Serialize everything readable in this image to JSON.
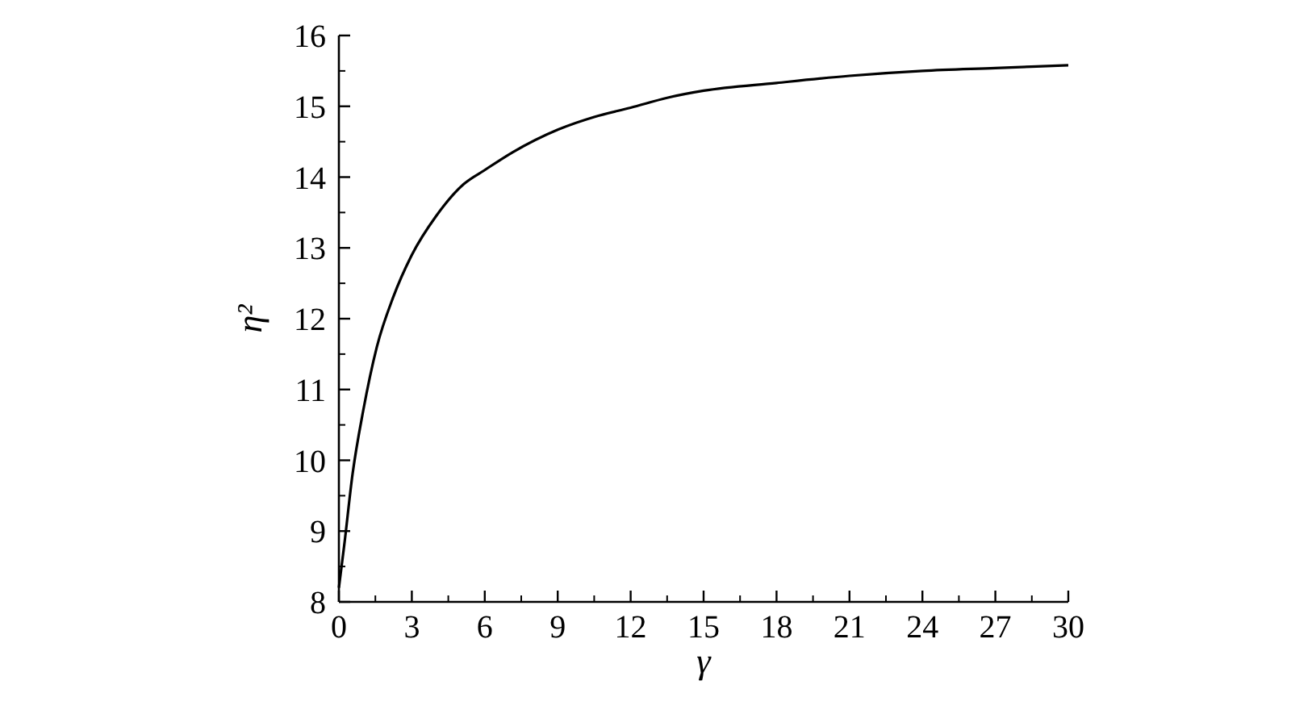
{
  "chart_data": {
    "type": "line",
    "xlabel": "γ",
    "ylabel": "η²",
    "xlim": [
      0,
      30
    ],
    "ylim": [
      8,
      16
    ],
    "xticks": [
      0,
      3,
      6,
      9,
      12,
      15,
      18,
      21,
      24,
      27,
      30
    ],
    "yticks": [
      8,
      9,
      10,
      11,
      12,
      13,
      14,
      15,
      16
    ],
    "series": [
      {
        "color": "#000000",
        "x": [
          0,
          0.22,
          0.56,
          1.0,
          1.56,
          2.23,
          3.0,
          4.0,
          5.13,
          6.0,
          7.14,
          9.0,
          10.5,
          12.0,
          13.5,
          15.0,
          18.0,
          21.0,
          24.0,
          27.0,
          30.0
        ],
        "values": [
          8.2,
          8.8,
          9.8,
          10.7,
          11.6,
          12.3,
          12.9,
          13.45,
          13.9,
          14.1,
          14.35,
          14.67,
          14.85,
          14.98,
          15.12,
          15.22,
          15.33,
          15.43,
          15.5,
          15.54,
          15.58
        ]
      }
    ],
    "marker": "none",
    "line_style": "solid"
  }
}
